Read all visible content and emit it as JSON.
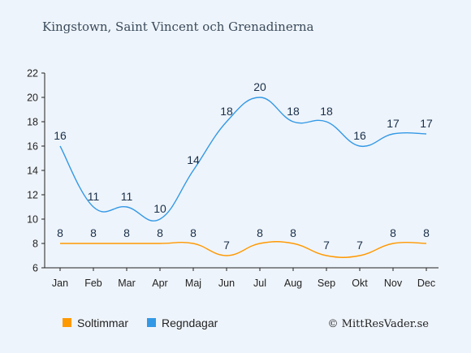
{
  "chart_data": {
    "type": "line",
    "title": "Kingstown, Saint Vincent och Grenadinerna",
    "categories": [
      "Jan",
      "Feb",
      "Mar",
      "Apr",
      "Maj",
      "Jun",
      "Jul",
      "Aug",
      "Sep",
      "Okt",
      "Nov",
      "Dec"
    ],
    "series": [
      {
        "name": "Soltimmar",
        "values": [
          8,
          8,
          8,
          8,
          8,
          7,
          8,
          8,
          7,
          7,
          8,
          8
        ],
        "color": "#ff9900"
      },
      {
        "name": "Regndagar",
        "values": [
          16,
          11,
          11,
          10,
          14,
          18,
          20,
          18,
          18,
          16,
          17,
          17
        ],
        "color": "#3399e6"
      }
    ],
    "y_ticks": [
      6,
      8,
      10,
      12,
      14,
      16,
      18,
      20,
      22
    ],
    "ylim": [
      6,
      22
    ],
    "grid": false,
    "legend_position": "bottom-left"
  },
  "credit": "© MittResVader.se"
}
